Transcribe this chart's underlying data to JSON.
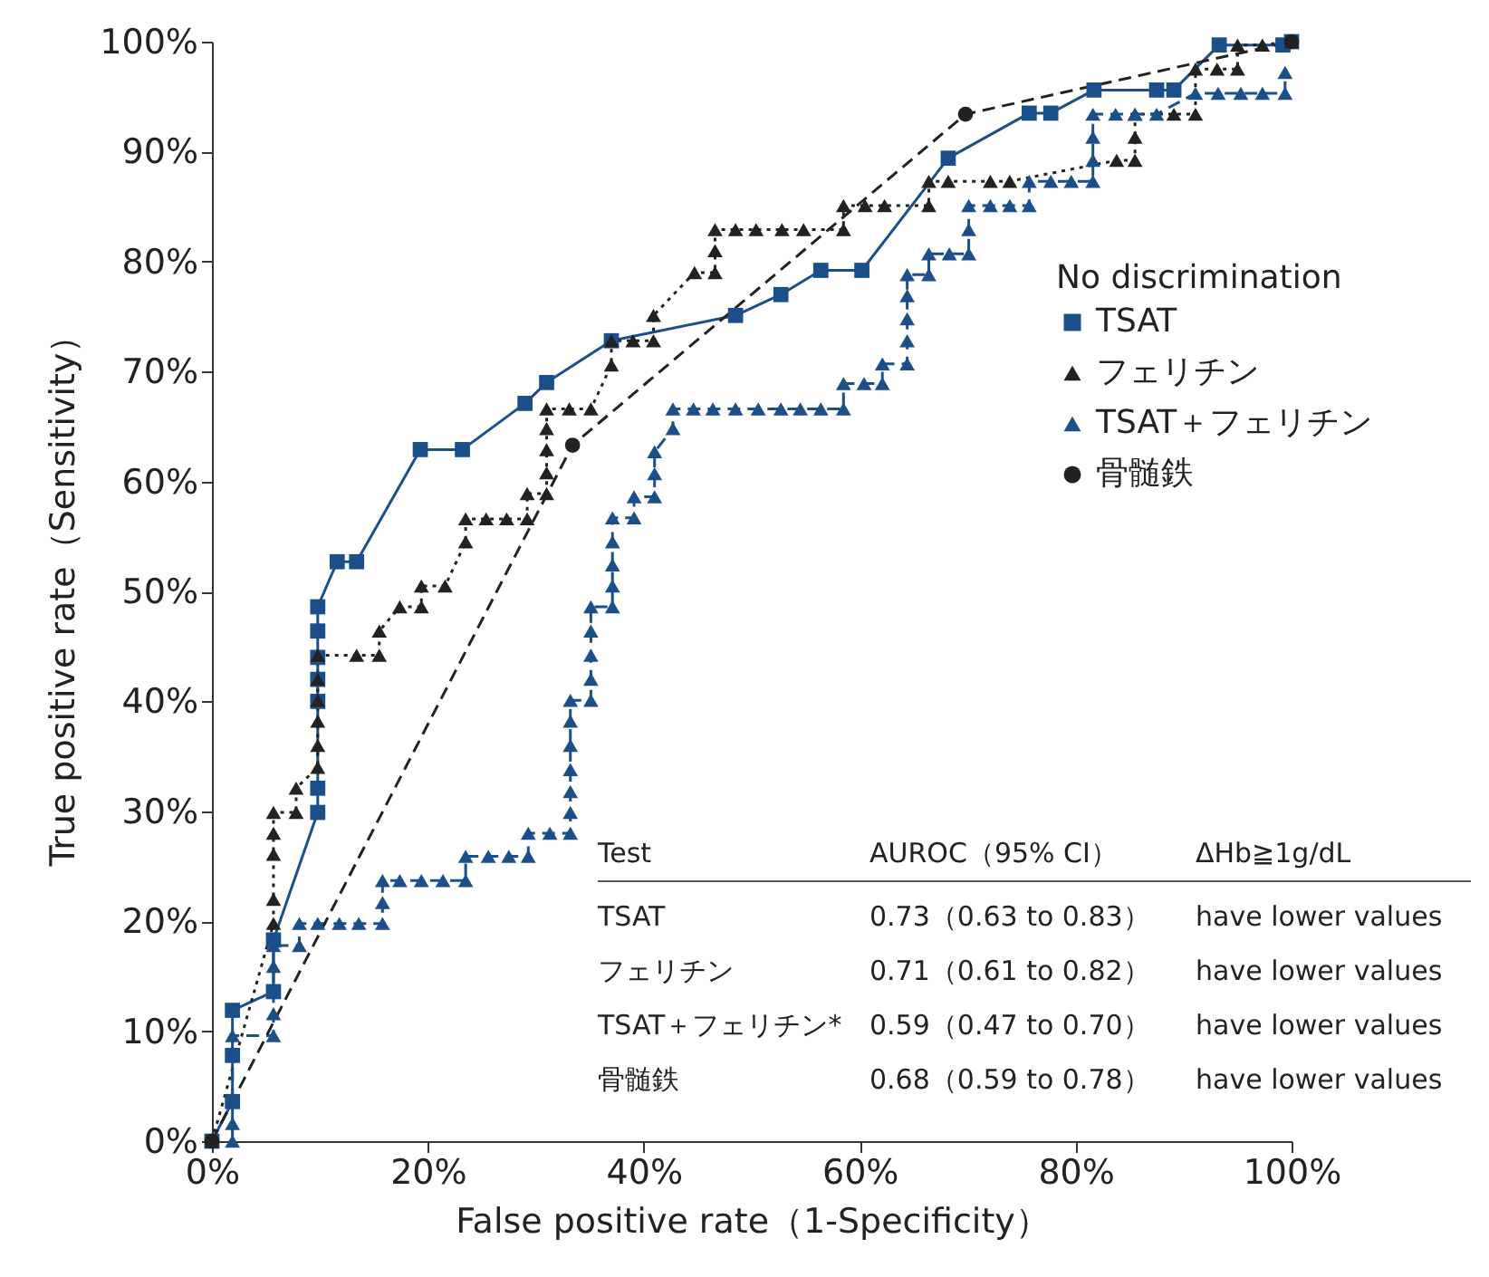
{
  "chart_data": {
    "type": "line",
    "xlabel": "False positive rate（1-Specificity）",
    "ylabel": "True positive rate（Sensitivity）",
    "legend_title": "No discrimination",
    "legend": "right",
    "xlim": [
      0,
      100
    ],
    "ylim": [
      0,
      100
    ],
    "xticks": [
      {
        "value": 0,
        "label": "0%"
      },
      {
        "value": 20,
        "label": "20%"
      },
      {
        "value": 40,
        "label": "40%"
      },
      {
        "value": 60,
        "label": "60%"
      },
      {
        "value": 80,
        "label": "80%"
      },
      {
        "value": 100,
        "label": "100%"
      }
    ],
    "yticks": [
      {
        "value": 0,
        "label": "0%"
      },
      {
        "value": 10,
        "label": "10%"
      },
      {
        "value": 20,
        "label": "20%"
      },
      {
        "value": 30,
        "label": "30%"
      },
      {
        "value": 40,
        "label": "40%"
      },
      {
        "value": 50,
        "label": "50%"
      },
      {
        "value": 60,
        "label": "60%"
      },
      {
        "value": 70,
        "label": "70%"
      },
      {
        "value": 80,
        "label": "80%"
      },
      {
        "value": 90,
        "label": "90%"
      },
      {
        "value": 100,
        "label": "100%"
      }
    ],
    "grid": false,
    "series": [
      {
        "name": "TSAT",
        "color": "#1b4f8a",
        "marker": "square",
        "line_style": "solid",
        "x": [
          0,
          1.9,
          1.9,
          1.9,
          5.7,
          5.7,
          9.8,
          9.8,
          9.8,
          9.8,
          9.8,
          9.8,
          9.8,
          11.6,
          13.4,
          19.3,
          23.2,
          29.0,
          31.0,
          37.0,
          48.5,
          52.7,
          56.4,
          60.2,
          68.2,
          75.7,
          77.7,
          81.7,
          87.5,
          89.1,
          93.3,
          99.2,
          100
        ],
        "values": [
          0,
          3.6,
          7.8,
          11.9,
          13.6,
          18.3,
          29.9,
          32.1,
          40,
          42,
          44,
          46.4,
          48.6,
          52.7,
          52.7,
          62.9,
          62.9,
          67.1,
          69.0,
          72.8,
          75.1,
          77.0,
          79.2,
          79.2,
          89.4,
          93.5,
          93.5,
          95.6,
          95.6,
          95.6,
          99.7,
          99.7,
          100
        ]
      },
      {
        "name": "フェリチン",
        "color": "#222222",
        "marker": "triangle",
        "line_style": "dotted",
        "x": [
          0,
          5.7,
          5.7,
          5.7,
          5.7,
          5.7,
          7.8,
          7.8,
          9.8,
          9.8,
          9.8,
          9.8,
          9.8,
          9.8,
          13.4,
          15.5,
          15.5,
          17.4,
          19.4,
          19.4,
          21.6,
          23.5,
          23.5,
          25.4,
          27.3,
          29.2,
          29.2,
          31.0,
          31.0,
          31.0,
          31.0,
          31.0,
          33.1,
          35.1,
          37.0,
          37.0,
          39.0,
          40.9,
          40.9,
          44.7,
          46.6,
          46.6,
          46.6,
          48.5,
          50.4,
          52.8,
          54.8,
          58.5,
          58.5,
          60.5,
          62.3,
          66.4,
          66.4,
          68.2,
          72.1,
          73.9,
          83.8,
          85.5,
          85.5,
          85.5,
          89.1,
          91.1,
          91.1,
          93.1,
          95.0,
          95.0,
          97.3,
          100
        ],
        "values": [
          0,
          19.8,
          22.0,
          26.1,
          28.0,
          29.9,
          29.9,
          32.1,
          34.0,
          36.0,
          38.2,
          40.1,
          42.0,
          44.2,
          44.2,
          44.2,
          46.4,
          48.6,
          48.6,
          50.5,
          50.5,
          54.5,
          56.6,
          56.6,
          56.6,
          56.6,
          58.9,
          58.9,
          60.8,
          62.9,
          64.8,
          66.6,
          66.6,
          66.6,
          70.6,
          72.8,
          72.8,
          72.8,
          75.1,
          79.0,
          79.0,
          81.0,
          82.9,
          82.9,
          82.9,
          82.9,
          82.9,
          82.9,
          85.1,
          85.1,
          85.1,
          85.1,
          87.3,
          87.3,
          87.3,
          87.3,
          89.2,
          89.2,
          91.3,
          93.4,
          93.4,
          93.4,
          97.5,
          97.5,
          97.5,
          99.7,
          99.7,
          100
        ]
      },
      {
        "name": "TSAT＋フェリチン",
        "color": "#1b4f8a",
        "marker": "triangle",
        "line_style": "dashed",
        "x": [
          1.9,
          1.9,
          1.9,
          5.7,
          5.7,
          5.7,
          5.7,
          8.1,
          8.1,
          9.8,
          11.8,
          13.6,
          15.8,
          15.8,
          15.8,
          17.4,
          19.4,
          21.4,
          23.5,
          23.5,
          25.6,
          27.5,
          29.3,
          29.3,
          31.3,
          33.2,
          33.2,
          33.2,
          33.2,
          33.2,
          33.2,
          33.2,
          35.1,
          35.1,
          35.1,
          35.1,
          35.1,
          37.1,
          37.1,
          37.1,
          37.1,
          37.1,
          39.1,
          39.1,
          41.0,
          41.0,
          41.0,
          42.7,
          42.7,
          44.6,
          46.4,
          48.5,
          50.6,
          52.7,
          54.5,
          56.4,
          58.5,
          58.5,
          60.4,
          62.1,
          62.1,
          64.4,
          64.4,
          64.4,
          64.4,
          64.4,
          66.4,
          66.4,
          68.3,
          70.1,
          70.1,
          70.1,
          72.1,
          73.9,
          75.7,
          75.7,
          77.7,
          79.6,
          81.6,
          81.6,
          81.6,
          81.6,
          83.7,
          85.5,
          87.5,
          91.1,
          93.2,
          95.3,
          97.3,
          99.4,
          99.4
        ],
        "values": [
          0,
          1.6,
          9.6,
          9.6,
          11.6,
          15.9,
          17.8,
          17.8,
          19.8,
          19.8,
          19.8,
          19.8,
          19.8,
          21.7,
          23.7,
          23.7,
          23.7,
          23.7,
          23.7,
          25.9,
          25.9,
          25.9,
          25.9,
          28.0,
          28.0,
          28.0,
          29.9,
          31.8,
          33.8,
          36.0,
          38.2,
          40.1,
          40.1,
          42.0,
          44.2,
          46.4,
          48.6,
          48.6,
          50.5,
          52.4,
          54.5,
          56.7,
          56.7,
          58.6,
          58.6,
          60.7,
          62.7,
          64.8,
          66.6,
          66.6,
          66.6,
          66.6,
          66.6,
          66.6,
          66.6,
          66.6,
          66.6,
          68.9,
          68.9,
          68.9,
          70.7,
          70.7,
          72.8,
          74.8,
          76.9,
          78.8,
          78.8,
          80.7,
          80.7,
          80.7,
          82.9,
          85.1,
          85.1,
          85.1,
          85.1,
          87.3,
          87.3,
          87.3,
          87.3,
          89.2,
          91.3,
          93.4,
          93.4,
          93.4,
          93.4,
          95.3,
          95.3,
          95.3,
          95.3,
          95.3,
          97.2
        ]
      },
      {
        "name": "骨髄鉄",
        "color": "#222222",
        "marker": "circle",
        "line_style": "dashed",
        "x": [
          0,
          33.4,
          69.8,
          100
        ],
        "values": [
          0,
          63.3,
          93.4,
          100
        ]
      }
    ],
    "annotations": [
      "Test",
      "AUROC（95% CI）",
      "ΔHb≧1g/dL",
      "TSAT",
      "0.73（0.63 to 0.83）",
      "have lower values",
      "フェリチン",
      "0.71（0.61 to 0.82）",
      "have lower values",
      "TSAT＋フェリチン*",
      "0.59（0.47 to 0.70）",
      "have lower values",
      "骨髄鉄",
      "0.68（0.59 to 0.78）",
      "have lower values"
    ]
  }
}
